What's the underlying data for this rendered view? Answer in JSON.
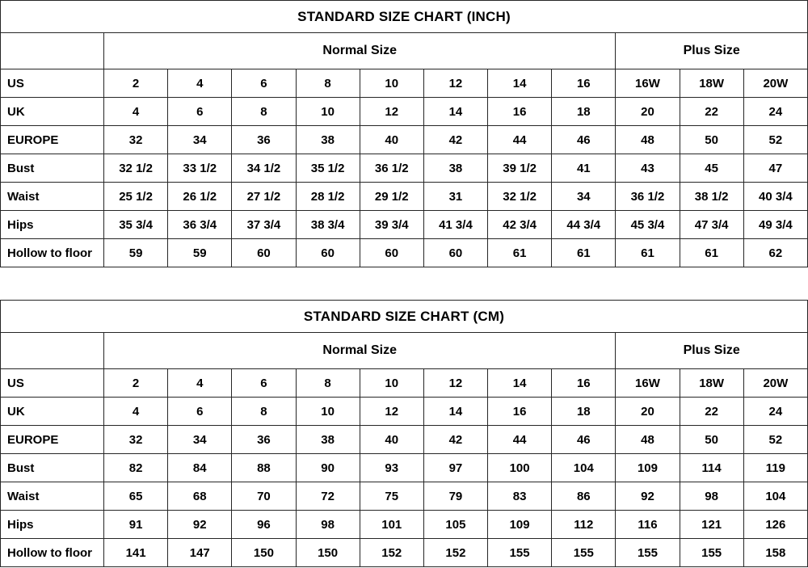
{
  "chart_data": [
    {
      "type": "table",
      "title": "STANDARD SIZE CHART (INCH)",
      "unit": "INCH",
      "column_groups": [
        {
          "label": "Normal Size",
          "span": 8
        },
        {
          "label": "Plus Size",
          "span": 3
        }
      ],
      "size_columns": [
        "2",
        "4",
        "6",
        "8",
        "10",
        "12",
        "14",
        "16",
        "16W",
        "18W",
        "20W"
      ],
      "rows": [
        {
          "label": "US",
          "values": [
            "2",
            "4",
            "6",
            "8",
            "10",
            "12",
            "14",
            "16",
            "16W",
            "18W",
            "20W"
          ]
        },
        {
          "label": "UK",
          "values": [
            "4",
            "6",
            "8",
            "10",
            "12",
            "14",
            "16",
            "18",
            "20",
            "22",
            "24"
          ]
        },
        {
          "label": "EUROPE",
          "values": [
            "32",
            "34",
            "36",
            "38",
            "40",
            "42",
            "44",
            "46",
            "48",
            "50",
            "52"
          ]
        },
        {
          "label": "Bust",
          "values": [
            "32 1/2",
            "33 1/2",
            "34 1/2",
            "35 1/2",
            "36 1/2",
            "38",
            "39 1/2",
            "41",
            "43",
            "45",
            "47"
          ]
        },
        {
          "label": "Waist",
          "values": [
            "25 1/2",
            "26 1/2",
            "27 1/2",
            "28 1/2",
            "29 1/2",
            "31",
            "32 1/2",
            "34",
            "36 1/2",
            "38 1/2",
            "40 3/4"
          ]
        },
        {
          "label": "Hips",
          "values": [
            "35 3/4",
            "36 3/4",
            "37 3/4",
            "38 3/4",
            "39 3/4",
            "41 3/4",
            "42 3/4",
            "44 3/4",
            "45 3/4",
            "47 3/4",
            "49 3/4"
          ]
        },
        {
          "label": "Hollow to floor",
          "values": [
            "59",
            "59",
            "60",
            "60",
            "60",
            "60",
            "61",
            "61",
            "61",
            "61",
            "62"
          ]
        }
      ]
    },
    {
      "type": "table",
      "title": "STANDARD SIZE CHART (CM)",
      "unit": "CM",
      "column_groups": [
        {
          "label": "Normal Size",
          "span": 8
        },
        {
          "label": "Plus Size",
          "span": 3
        }
      ],
      "size_columns": [
        "2",
        "4",
        "6",
        "8",
        "10",
        "12",
        "14",
        "16",
        "16W",
        "18W",
        "20W"
      ],
      "rows": [
        {
          "label": "US",
          "values": [
            "2",
            "4",
            "6",
            "8",
            "10",
            "12",
            "14",
            "16",
            "16W",
            "18W",
            "20W"
          ]
        },
        {
          "label": "UK",
          "values": [
            "4",
            "6",
            "8",
            "10",
            "12",
            "14",
            "16",
            "18",
            "20",
            "22",
            "24"
          ]
        },
        {
          "label": "EUROPE",
          "values": [
            "32",
            "34",
            "36",
            "38",
            "40",
            "42",
            "44",
            "46",
            "48",
            "50",
            "52"
          ]
        },
        {
          "label": "Bust",
          "values": [
            "82",
            "84",
            "88",
            "90",
            "93",
            "97",
            "100",
            "104",
            "109",
            "114",
            "119"
          ]
        },
        {
          "label": "Waist",
          "values": [
            "65",
            "68",
            "70",
            "72",
            "75",
            "79",
            "83",
            "86",
            "92",
            "98",
            "104"
          ]
        },
        {
          "label": "Hips",
          "values": [
            "91",
            "92",
            "96",
            "98",
            "101",
            "105",
            "109",
            "112",
            "116",
            "121",
            "126"
          ]
        },
        {
          "label": "Hollow to floor",
          "values": [
            "141",
            "147",
            "150",
            "150",
            "152",
            "152",
            "155",
            "155",
            "155",
            "155",
            "158"
          ]
        }
      ]
    }
  ],
  "colors": {
    "title_background": "#d9d9d9",
    "border": "#262626",
    "text": "#000000",
    "background": "#ffffff"
  }
}
